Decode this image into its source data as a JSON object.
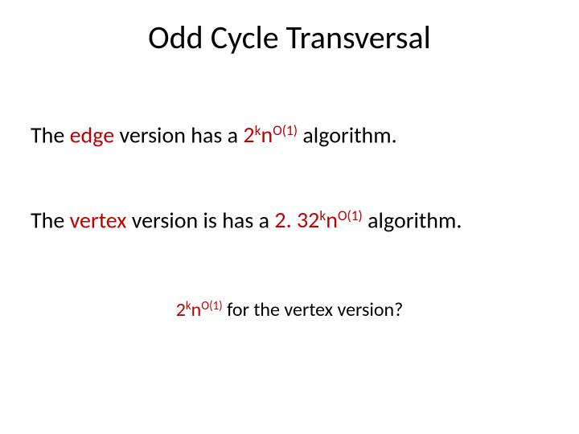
{
  "colors": {
    "text": "#000000",
    "accent": "#c00000",
    "background": "#ffffff"
  },
  "typography": {
    "title_fontsize": 40,
    "body_fontsize": 28,
    "question_fontsize": 24,
    "font_family": "Calibri"
  },
  "title": "Odd Cycle Transversal",
  "line1": {
    "pre": "The ",
    "em": "edge",
    "mid": " version has a ",
    "expr_base": "2",
    "expr_sup1": "k",
    "expr_n": "n",
    "expr_sup2": "O(1)",
    "post": " algorithm."
  },
  "line2": {
    "pre": "The ",
    "em": "vertex",
    "mid": " version is has a ",
    "expr_base": "2. 32",
    "expr_sup1": "k",
    "expr_n": "n",
    "expr_sup2": "O(1)",
    "post": " algorithm."
  },
  "line3": {
    "expr_base": "2",
    "expr_sup1": "k",
    "expr_n": "n",
    "expr_sup2": "O(1)",
    "post": " for the vertex version?"
  }
}
